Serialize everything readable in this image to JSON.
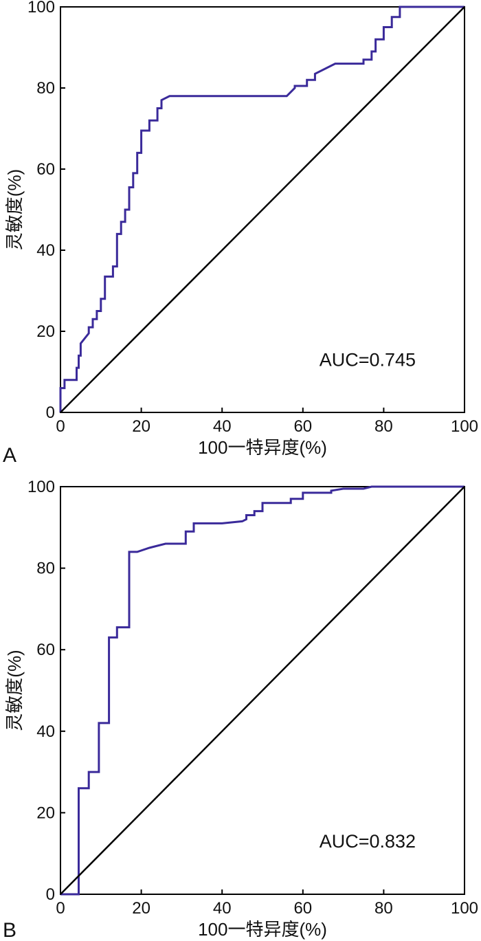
{
  "colors": {
    "roc": "#3a2a9a",
    "diagonal": "#000000",
    "axis": "#000000"
  },
  "chart_data": [
    {
      "panel_label": "A",
      "type": "line",
      "xlabel": "100一特异度(%)",
      "ylabel": "灵敏度(%)",
      "xlim": [
        0,
        100
      ],
      "ylim": [
        0,
        100
      ],
      "xticks": [
        0,
        20,
        40,
        60,
        80,
        100
      ],
      "yticks": [
        0,
        20,
        40,
        60,
        80,
        100
      ],
      "annotation": "AUC=0.745",
      "grid": false,
      "series": [
        {
          "role": "roc",
          "x": [
            0,
            0,
            1,
            1,
            4,
            4,
            4.5,
            4.5,
            5,
            5,
            7,
            7,
            8,
            8,
            9,
            9,
            10,
            10,
            11,
            11,
            13,
            13,
            14,
            14,
            15,
            15,
            16,
            16,
            17,
            17,
            18,
            18,
            19,
            19,
            20,
            20,
            22,
            22,
            24,
            24,
            25,
            25,
            27,
            56,
            58,
            58,
            61,
            61,
            63,
            63,
            68,
            68,
            75,
            75,
            77,
            77,
            78,
            78,
            80,
            80,
            82,
            82,
            84,
            84,
            100
          ],
          "y": [
            0,
            6,
            6,
            8,
            8,
            11,
            11,
            14,
            14,
            17,
            19.5,
            21,
            21,
            23,
            23,
            25,
            25,
            28,
            28,
            33.5,
            33.5,
            36,
            36,
            44,
            44,
            47,
            47,
            50,
            50,
            55.5,
            55.5,
            59,
            59,
            64,
            64,
            69.5,
            69.5,
            72,
            72,
            75,
            75,
            77,
            78,
            78,
            80,
            80.5,
            80.5,
            82,
            82,
            83.5,
            86,
            86,
            86,
            87,
            87,
            89,
            89,
            92,
            92,
            95,
            95,
            97.5,
            97.5,
            100,
            100
          ]
        },
        {
          "role": "diagonal",
          "x": [
            0,
            100
          ],
          "y": [
            0,
            100
          ]
        }
      ]
    },
    {
      "panel_label": "B",
      "type": "line",
      "xlabel": "100一特异度(%)",
      "ylabel": "灵敏度(%)",
      "xlim": [
        0,
        100
      ],
      "ylim": [
        0,
        100
      ],
      "xticks": [
        0,
        20,
        40,
        60,
        80,
        100
      ],
      "yticks": [
        0,
        20,
        40,
        60,
        80,
        100
      ],
      "annotation": "AUC=0.832",
      "grid": false,
      "series": [
        {
          "role": "roc",
          "x": [
            0,
            4.5,
            4.5,
            7,
            7,
            9.5,
            9.5,
            12,
            12,
            14,
            14,
            17,
            17,
            19,
            22,
            24,
            26,
            28,
            31,
            31,
            33,
            33,
            37,
            40,
            45,
            46,
            46,
            48,
            48,
            50,
            50,
            55,
            57,
            57,
            60,
            60,
            67,
            67,
            70,
            75,
            77,
            80,
            85,
            100
          ],
          "y": [
            0,
            0,
            26,
            26,
            30,
            30,
            42,
            42,
            63,
            63,
            65.5,
            65.5,
            84,
            84,
            85,
            85.5,
            86,
            86,
            86,
            89,
            89,
            91,
            91,
            91,
            91.5,
            92,
            93,
            93,
            94,
            94,
            96,
            96,
            96,
            97,
            97,
            98.5,
            98.5,
            99,
            99.5,
            99.5,
            100,
            100,
            100,
            100
          ]
        },
        {
          "role": "diagonal",
          "x": [
            0,
            100
          ],
          "y": [
            0,
            100
          ]
        }
      ]
    }
  ]
}
